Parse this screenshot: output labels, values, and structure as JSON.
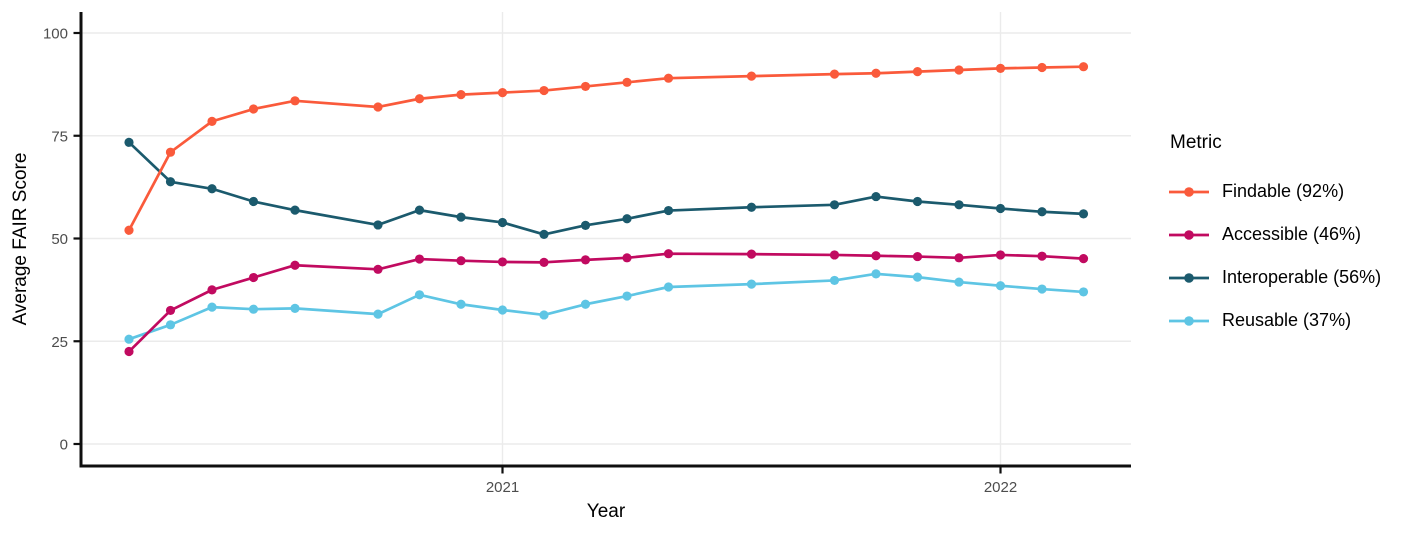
{
  "chart_data": {
    "type": "line",
    "title": "",
    "xlabel": "Year",
    "ylabel": "Average FAIR Score",
    "legend_title": "Metric",
    "legend_position": "right",
    "grid": true,
    "ylim": [
      0,
      100
    ],
    "y_ticks": [
      0,
      25,
      50,
      75,
      100
    ],
    "x_ticks": [
      {
        "label": "2021",
        "date": "2021-01"
      },
      {
        "label": "2022",
        "date": "2022-01"
      }
    ],
    "x_range": [
      "2020-04",
      "2022-03"
    ],
    "x": [
      "2020-04",
      "2020-05",
      "2020-06",
      "2020-07",
      "2020-08",
      "2020-10",
      "2020-11",
      "2020-12",
      "2021-01",
      "2021-02",
      "2021-03",
      "2021-04",
      "2021-05",
      "2021-07",
      "2021-09",
      "2021-10",
      "2021-11",
      "2021-12",
      "2022-01",
      "2022-02",
      "2022-03"
    ],
    "series": [
      {
        "name": "Findable (92%)",
        "color": "#FA5A3B",
        "values": [
          52,
          71,
          78.5,
          81.5,
          83.5,
          82,
          84,
          85,
          85.5,
          86,
          87,
          88,
          89,
          89.5,
          90,
          90.2,
          90.6,
          91,
          91.4,
          91.6,
          91.8
        ]
      },
      {
        "name": "Accessible (46%)",
        "color": "#C10A60",
        "values": [
          22.5,
          32.5,
          37.5,
          40.5,
          43.5,
          42.5,
          45,
          44.6,
          44.3,
          44.2,
          44.8,
          45.3,
          46.3,
          46.2,
          46,
          45.8,
          45.6,
          45.3,
          46,
          45.7,
          45.1
        ]
      },
      {
        "name": "Interoperable (56%)",
        "color": "#1B5A6D",
        "values": [
          73.4,
          63.8,
          62.1,
          59,
          56.9,
          53.3,
          56.9,
          55.2,
          53.9,
          51,
          53.2,
          54.8,
          56.8,
          57.6,
          58.2,
          60.2,
          59,
          58.2,
          57.3,
          56.5,
          56
        ]
      },
      {
        "name": "Reusable (37%)",
        "color": "#5EC5E4",
        "values": [
          25.5,
          29,
          33.3,
          32.8,
          33,
          31.6,
          36.3,
          34,
          32.6,
          31.4,
          34,
          36,
          38.2,
          38.9,
          39.8,
          41.4,
          40.6,
          39.4,
          38.5,
          37.7,
          37
        ]
      }
    ]
  },
  "style_colors": {
    "gridline": "#EBEBEB",
    "tick_text": "#4D4D4D",
    "axis_line": "#0F0F0F",
    "background": "#FFFFFF"
  }
}
